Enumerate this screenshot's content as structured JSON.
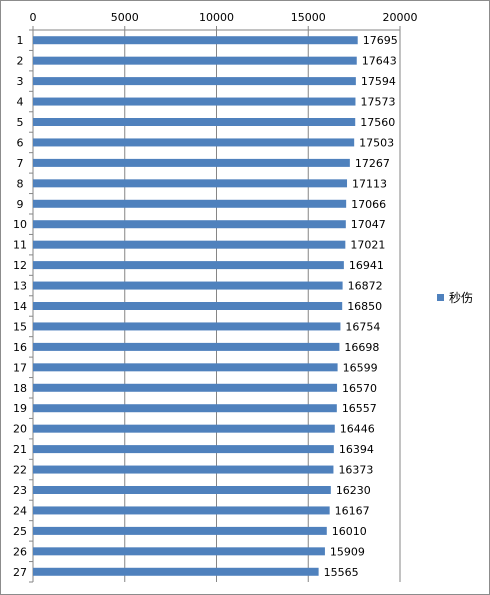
{
  "chart_data": {
    "type": "bar",
    "orientation": "horizontal",
    "categories": [
      "1",
      "2",
      "3",
      "4",
      "5",
      "6",
      "7",
      "8",
      "9",
      "10",
      "11",
      "12",
      "13",
      "14",
      "15",
      "16",
      "17",
      "18",
      "19",
      "20",
      "21",
      "22",
      "23",
      "24",
      "25",
      "26",
      "27"
    ],
    "series": [
      {
        "name": "秒伤",
        "values": [
          17695,
          17643,
          17594,
          17573,
          17560,
          17503,
          17267,
          17113,
          17066,
          17047,
          17021,
          16941,
          16872,
          16850,
          16754,
          16698,
          16599,
          16570,
          16557,
          16446,
          16394,
          16373,
          16230,
          16167,
          16010,
          15909,
          15565
        ]
      }
    ],
    "x_ticks": [
      "0",
      "5000",
      "10000",
      "15000",
      "20000"
    ],
    "xlim": [
      0,
      20000
    ],
    "x_axis_position": "top",
    "grid": "vertical",
    "legend": "right",
    "bar_color": "#4F81BD"
  }
}
